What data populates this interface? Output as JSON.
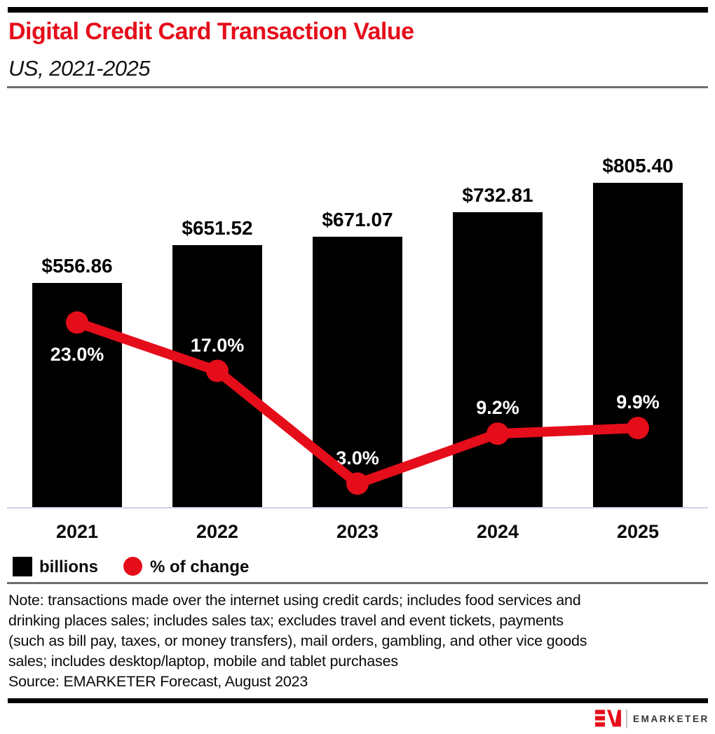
{
  "header": {
    "title": "Digital Credit Card Transaction Value",
    "subtitle": "US, 2021-2025"
  },
  "chart_data": {
    "type": "bar",
    "title": "Digital Credit Card Transaction Value",
    "subtitle": "US, 2021-2025",
    "categories": [
      "2021",
      "2022",
      "2023",
      "2024",
      "2025"
    ],
    "series": [
      {
        "name": "billions",
        "type": "bar",
        "unit": "USD billions",
        "values": [
          556.86,
          651.52,
          671.07,
          732.81,
          805.4
        ],
        "labels": [
          "$556.86",
          "$651.52",
          "$671.07",
          "$732.81",
          "$805.40"
        ]
      },
      {
        "name": "% of change",
        "type": "line",
        "unit": "percent",
        "values": [
          23.0,
          17.0,
          3.0,
          9.2,
          9.9
        ],
        "labels": [
          "23.0%",
          "17.0%",
          "3.0%",
          "9.2%",
          "9.9%"
        ]
      }
    ],
    "grid": "off",
    "y_axis": "hidden",
    "legend_position": "bottom-left"
  },
  "legend": {
    "items": [
      {
        "label": "billions",
        "swatch": "black-square"
      },
      {
        "label": "% of change",
        "swatch": "red-circle"
      }
    ]
  },
  "footnote": {
    "note_lines": [
      "Note: transactions made over the internet using credit cards; includes food services and",
      "drinking places sales; includes sales tax; excludes travel and event tickets, payments",
      "(such as bill pay, taxes, or money transfers), mail orders, gambling, and other vice goods",
      "sales; includes desktop/laptop, mobile and tablet purchases"
    ],
    "source": "Source: EMARKETER Forecast, August 2023"
  },
  "branding": {
    "wordmark": "EMARKETER",
    "monogram": "EM"
  },
  "colors": {
    "accent_red": "#e50d1a",
    "bar_fill": "#000000",
    "baseline": "#ccd3e6",
    "divider": "#6f6f6f",
    "wordmark_gray": "#333333"
  }
}
